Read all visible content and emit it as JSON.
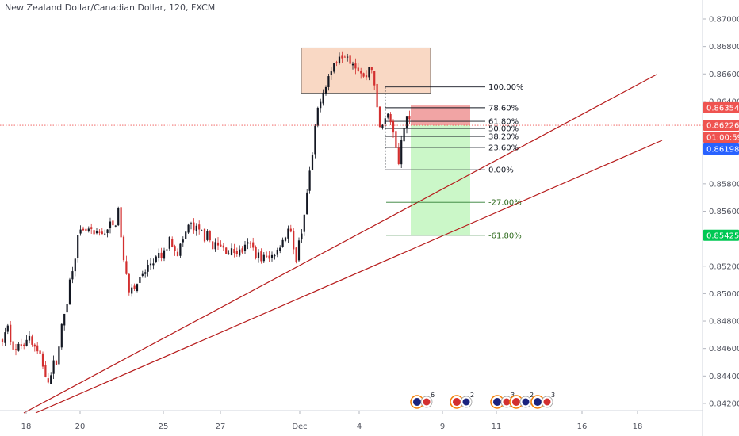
{
  "header": {
    "title": "New Zealand Dollar/Canadian Dollar, 120, FXCM"
  },
  "chart_data": {
    "type": "candlestick",
    "ylim": [
      0.841,
      0.871
    ],
    "y_ticks": [
      {
        "v": 0.87,
        "label": "0.87000"
      },
      {
        "v": 0.868,
        "label": "0.86800"
      },
      {
        "v": 0.866,
        "label": "0.86600"
      },
      {
        "v": 0.864,
        "label": "0.86400"
      },
      {
        "v": 0.858,
        "label": "0.85800"
      },
      {
        "v": 0.856,
        "label": "0.85600"
      },
      {
        "v": 0.852,
        "label": "0.85200"
      },
      {
        "v": 0.85,
        "label": "0.85000"
      },
      {
        "v": 0.848,
        "label": "0.84800"
      },
      {
        "v": 0.846,
        "label": "0.84600"
      },
      {
        "v": 0.844,
        "label": "0.84400"
      },
      {
        "v": 0.842,
        "label": "0.84200"
      }
    ],
    "x_labels": [
      "18",
      "20",
      "25",
      "27",
      "Dec",
      "4",
      "9",
      "11",
      "16",
      "18"
    ],
    "price_badges": [
      {
        "v": 0.86354,
        "label": "0.86354",
        "color": "#ef5350"
      },
      {
        "v": 0.86226,
        "label": "0.86226",
        "color": "#ef5350"
      },
      {
        "v": 0.86212,
        "label": "01:00:59",
        "color": "#ef5350"
      },
      {
        "v": 0.86198,
        "label": "0.86198",
        "color": "#2962ff"
      },
      {
        "v": 0.85425,
        "label": "0.85425",
        "color": "#00c853"
      }
    ],
    "current_price": 0.86226,
    "fib_levels": [
      {
        "v": 0.86505,
        "label": "100.00%"
      },
      {
        "v": 0.86354,
        "label": "78.60%"
      },
      {
        "v": 0.86255,
        "label": "61.80%"
      },
      {
        "v": 0.86203,
        "label": "50.00%"
      },
      {
        "v": 0.86145,
        "label": "38.20%"
      },
      {
        "v": 0.86065,
        "label": "23.60%"
      },
      {
        "v": 0.85902,
        "label": "0.00%"
      },
      {
        "v": 0.85665,
        "label": "-27.00%"
      },
      {
        "v": 0.85425,
        "label": "-61.80%"
      }
    ],
    "events": {
      "counts": [
        "6",
        "2",
        "3",
        "2",
        "3"
      ]
    },
    "colors": {
      "up": "#131722",
      "down": "#d32f2f",
      "trendline": "#b71c1c",
      "supply_zone": "#f9d8c4",
      "short_loss": "#ef9a9a",
      "short_target": "#c8f7c5"
    }
  }
}
